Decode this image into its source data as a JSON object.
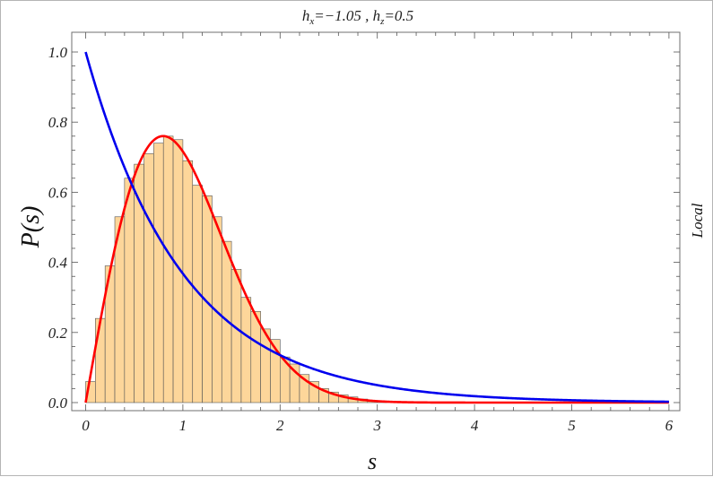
{
  "chart_data": {
    "type": "bar",
    "title": "h_x=−1.05 , h_z=0.5",
    "title_parts": {
      "a_sym": "h",
      "a_sub": "x",
      "a_val": "=−1.05 , ",
      "b_sym": "h",
      "b_sub": "z",
      "b_val": "=0.5"
    },
    "xlabel": "s",
    "ylabel": "P(s)",
    "right_label": "Local",
    "xlim": [
      0,
      6
    ],
    "ylim": [
      0,
      1.0
    ],
    "x_ticks": [
      "0",
      "1",
      "2",
      "3",
      "4",
      "5",
      "6"
    ],
    "y_ticks": [
      "0.0",
      "0.2",
      "0.4",
      "0.6",
      "0.8",
      "1.0"
    ],
    "x_tick_values": [
      0,
      1,
      2,
      3,
      4,
      5,
      6
    ],
    "y_tick_values": [
      0,
      0.2,
      0.4,
      0.6,
      0.8,
      1.0
    ],
    "bin_width": 0.1,
    "bin_start": 0,
    "bin_values": [
      0.06,
      0.24,
      0.39,
      0.53,
      0.64,
      0.68,
      0.71,
      0.74,
      0.76,
      0.75,
      0.69,
      0.62,
      0.59,
      0.53,
      0.46,
      0.38,
      0.3,
      0.26,
      0.21,
      0.18,
      0.13,
      0.11,
      0.08,
      0.06,
      0.04,
      0.03,
      0.022,
      0.016,
      0.01,
      0.006,
      0.004
    ],
    "series": [
      {
        "color": "#ff0000",
        "values_function": "wigner-gaussian"
      },
      {
        "color": "#0000ee",
        "values_function": "poisson"
      }
    ],
    "bar_color": "#fdd69a",
    "bar_edge": "#555555",
    "grid": false,
    "legend": "none"
  }
}
